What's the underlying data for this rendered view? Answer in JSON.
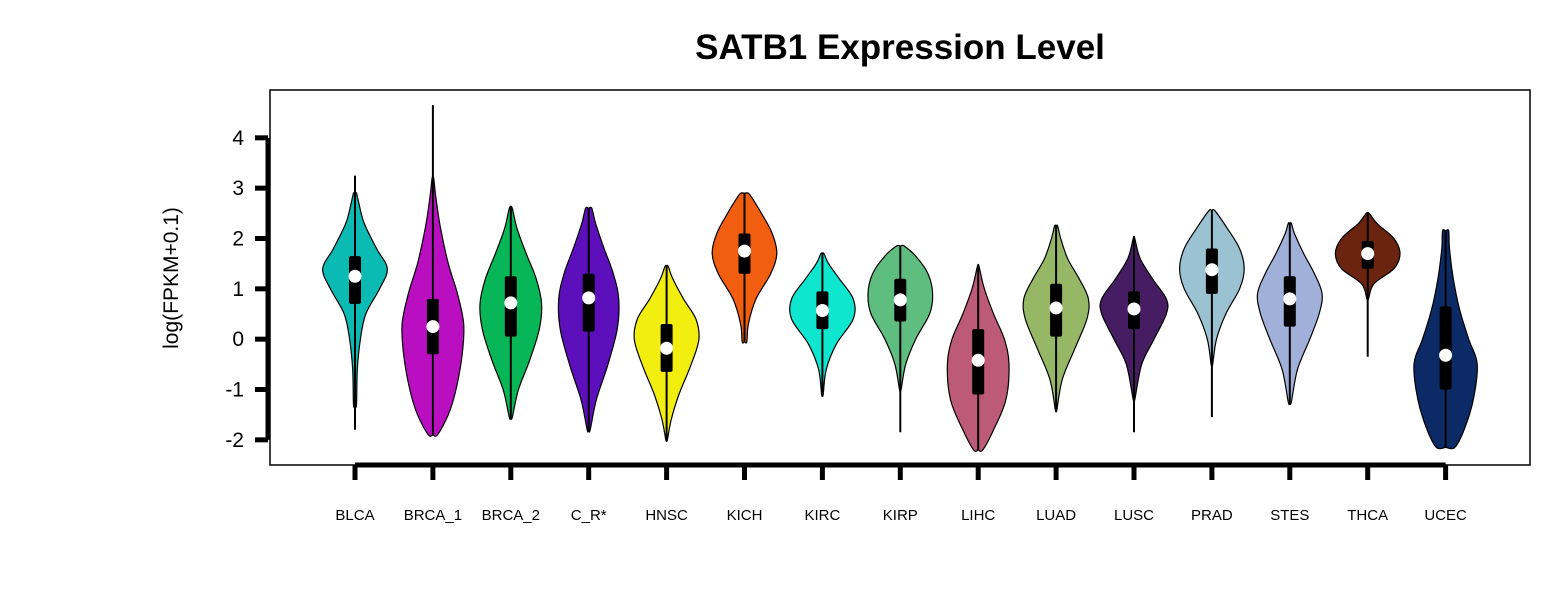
{
  "chart_data": {
    "type": "violin",
    "title": "SATB1 Expression Level",
    "xlabel": "",
    "ylabel": "log(FPKM+0.1)",
    "ylim": [
      -2.5,
      4.95
    ],
    "yticks": [
      -2,
      -1,
      0,
      1,
      2,
      3,
      4
    ],
    "ytick_labels": [
      "-2",
      "-1",
      "0",
      "1",
      "2",
      "3",
      "4"
    ],
    "grid": false,
    "categories": [
      "BLCA",
      "BRCA_1",
      "BRCA_2",
      "C_R*",
      "HNSC",
      "KICH",
      "KIRC",
      "KIRP",
      "LIHC",
      "LUAD",
      "LUSC",
      "PRAD",
      "STES",
      "THCA",
      "UCEC"
    ],
    "series": [
      {
        "category": "BLCA",
        "color": "#0bbbb3",
        "whisker_min": -1.8,
        "whisker_max": 3.25,
        "q1": 0.7,
        "q3": 1.65,
        "median": 1.25,
        "profile": [
          [
            -1.3,
            0.02
          ],
          [
            -0.6,
            0.03
          ],
          [
            0.0,
            0.07
          ],
          [
            0.5,
            0.14
          ],
          [
            1.0,
            0.32
          ],
          [
            1.4,
            0.42
          ],
          [
            1.8,
            0.28
          ],
          [
            2.3,
            0.12
          ],
          [
            2.7,
            0.05
          ],
          [
            2.9,
            0.02
          ]
        ]
      },
      {
        "category": "BRCA_1",
        "color": "#b90fc0",
        "whisker_min": -1.9,
        "whisker_max": 4.65,
        "q1": -0.3,
        "q3": 0.8,
        "median": 0.25,
        "profile": [
          [
            -1.9,
            0.06
          ],
          [
            -1.5,
            0.2
          ],
          [
            -1.0,
            0.3
          ],
          [
            -0.3,
            0.38
          ],
          [
            0.3,
            0.4
          ],
          [
            0.9,
            0.32
          ],
          [
            1.5,
            0.2
          ],
          [
            2.2,
            0.1
          ],
          [
            2.8,
            0.04
          ],
          [
            3.2,
            0.01
          ]
        ]
      },
      {
        "category": "BRCA_2",
        "color": "#07b656",
        "whisker_min": -1.55,
        "whisker_max": 2.65,
        "q1": 0.05,
        "q3": 1.25,
        "median": 0.72,
        "profile": [
          [
            -1.55,
            0.02
          ],
          [
            -1.0,
            0.1
          ],
          [
            -0.4,
            0.25
          ],
          [
            0.2,
            0.37
          ],
          [
            0.7,
            0.4
          ],
          [
            1.2,
            0.33
          ],
          [
            1.7,
            0.2
          ],
          [
            2.2,
            0.08
          ],
          [
            2.6,
            0.02
          ]
        ]
      },
      {
        "category": "C_R*",
        "color": "#5e0fbc",
        "whisker_min": -1.8,
        "whisker_max": 2.6,
        "q1": 0.15,
        "q3": 1.3,
        "median": 0.82,
        "profile": [
          [
            -1.8,
            0.02
          ],
          [
            -1.2,
            0.1
          ],
          [
            -0.5,
            0.25
          ],
          [
            0.2,
            0.37
          ],
          [
            0.8,
            0.39
          ],
          [
            1.3,
            0.32
          ],
          [
            1.8,
            0.2
          ],
          [
            2.3,
            0.09
          ],
          [
            2.6,
            0.04
          ]
        ]
      },
      {
        "category": "HNSC",
        "color": "#f2ee10",
        "whisker_min": -2.0,
        "whisker_max": 1.45,
        "q1": -0.65,
        "q3": 0.3,
        "median": -0.18,
        "profile": [
          [
            -2.0,
            0.01
          ],
          [
            -1.6,
            0.06
          ],
          [
            -1.1,
            0.16
          ],
          [
            -0.5,
            0.32
          ],
          [
            0.0,
            0.42
          ],
          [
            0.4,
            0.38
          ],
          [
            0.8,
            0.22
          ],
          [
            1.2,
            0.08
          ],
          [
            1.45,
            0.02
          ]
        ]
      },
      {
        "category": "KICH",
        "color": "#f25e10",
        "whisker_min": -0.05,
        "whisker_max": 2.9,
        "q1": 1.3,
        "q3": 2.1,
        "median": 1.75,
        "profile": [
          [
            -0.05,
            0.03
          ],
          [
            0.3,
            0.05
          ],
          [
            0.8,
            0.15
          ],
          [
            1.3,
            0.34
          ],
          [
            1.7,
            0.42
          ],
          [
            2.1,
            0.36
          ],
          [
            2.5,
            0.22
          ],
          [
            2.8,
            0.1
          ],
          [
            2.9,
            0.05
          ]
        ]
      },
      {
        "category": "KIRC",
        "color": "#0ee6d0",
        "whisker_min": -1.1,
        "whisker_max": 1.7,
        "q1": 0.2,
        "q3": 0.95,
        "median": 0.57,
        "profile": [
          [
            -1.1,
            0.01
          ],
          [
            -0.6,
            0.05
          ],
          [
            -0.1,
            0.18
          ],
          [
            0.4,
            0.4
          ],
          [
            0.8,
            0.4
          ],
          [
            1.2,
            0.22
          ],
          [
            1.5,
            0.08
          ],
          [
            1.7,
            0.02
          ]
        ]
      },
      {
        "category": "KIRP",
        "color": "#5ebe80",
        "whisker_min": -1.85,
        "whisker_max": 1.85,
        "q1": 0.35,
        "q3": 1.2,
        "median": 0.78,
        "profile": [
          [
            -1.0,
            0.01
          ],
          [
            -0.5,
            0.07
          ],
          [
            0.0,
            0.2
          ],
          [
            0.5,
            0.38
          ],
          [
            0.9,
            0.42
          ],
          [
            1.3,
            0.36
          ],
          [
            1.65,
            0.2
          ],
          [
            1.85,
            0.05
          ]
        ]
      },
      {
        "category": "LIHC",
        "color": "#bd5a7a",
        "whisker_min": -2.2,
        "whisker_max": 1.45,
        "q1": -1.1,
        "q3": 0.2,
        "median": -0.42,
        "profile": [
          [
            -2.2,
            0.06
          ],
          [
            -1.8,
            0.2
          ],
          [
            -1.2,
            0.36
          ],
          [
            -0.5,
            0.4
          ],
          [
            0.0,
            0.34
          ],
          [
            0.5,
            0.2
          ],
          [
            1.0,
            0.08
          ],
          [
            1.45,
            0.01
          ]
        ]
      },
      {
        "category": "LUAD",
        "color": "#96b866",
        "whisker_min": -1.4,
        "whisker_max": 2.25,
        "q1": 0.05,
        "q3": 1.1,
        "median": 0.62,
        "profile": [
          [
            -1.4,
            0.01
          ],
          [
            -0.8,
            0.08
          ],
          [
            -0.2,
            0.24
          ],
          [
            0.4,
            0.4
          ],
          [
            0.8,
            0.42
          ],
          [
            1.2,
            0.3
          ],
          [
            1.6,
            0.15
          ],
          [
            2.0,
            0.06
          ],
          [
            2.25,
            0.02
          ]
        ]
      },
      {
        "category": "LUSC",
        "color": "#461d62",
        "whisker_min": -1.85,
        "whisker_max": 2.05,
        "q1": 0.2,
        "q3": 0.95,
        "median": 0.6,
        "profile": [
          [
            -1.2,
            0.01
          ],
          [
            -0.5,
            0.1
          ],
          [
            0.0,
            0.26
          ],
          [
            0.5,
            0.42
          ],
          [
            0.8,
            0.42
          ],
          [
            1.2,
            0.24
          ],
          [
            1.6,
            0.08
          ],
          [
            2.0,
            0.01
          ]
        ]
      },
      {
        "category": "PRAD",
        "color": "#9ac2d0",
        "whisker_min": -1.55,
        "whisker_max": 2.55,
        "q1": 0.9,
        "q3": 1.8,
        "median": 1.38,
        "profile": [
          [
            -0.5,
            0.01
          ],
          [
            0.0,
            0.06
          ],
          [
            0.5,
            0.18
          ],
          [
            1.0,
            0.36
          ],
          [
            1.4,
            0.42
          ],
          [
            1.8,
            0.36
          ],
          [
            2.2,
            0.2
          ],
          [
            2.55,
            0.04
          ]
        ]
      },
      {
        "category": "STES",
        "color": "#a0b0d8",
        "whisker_min": -1.25,
        "whisker_max": 2.3,
        "q1": 0.25,
        "q3": 1.25,
        "median": 0.8,
        "profile": [
          [
            -1.25,
            0.02
          ],
          [
            -0.6,
            0.1
          ],
          [
            0.0,
            0.26
          ],
          [
            0.5,
            0.38
          ],
          [
            0.9,
            0.42
          ],
          [
            1.3,
            0.32
          ],
          [
            1.7,
            0.18
          ],
          [
            2.1,
            0.06
          ],
          [
            2.3,
            0.02
          ]
        ]
      },
      {
        "category": "THCA",
        "color": "#6b2410",
        "whisker_min": -0.35,
        "whisker_max": 2.5,
        "q1": 1.4,
        "q3": 1.95,
        "median": 1.7,
        "profile": [
          [
            0.8,
            0.01
          ],
          [
            1.1,
            0.08
          ],
          [
            1.4,
            0.34
          ],
          [
            1.7,
            0.42
          ],
          [
            2.0,
            0.34
          ],
          [
            2.3,
            0.12
          ],
          [
            2.5,
            0.02
          ]
        ]
      },
      {
        "category": "UCEC",
        "color": "#0c2a66",
        "whisker_min": -2.15,
        "whisker_max": 2.15,
        "q1": -1.0,
        "q3": 0.65,
        "median": -0.32,
        "profile": [
          [
            -2.15,
            0.12
          ],
          [
            -1.8,
            0.24
          ],
          [
            -1.2,
            0.36
          ],
          [
            -0.5,
            0.41
          ],
          [
            0.0,
            0.3
          ],
          [
            0.6,
            0.18
          ],
          [
            1.2,
            0.1
          ],
          [
            1.8,
            0.05
          ],
          [
            2.15,
            0.04
          ]
        ]
      }
    ]
  }
}
